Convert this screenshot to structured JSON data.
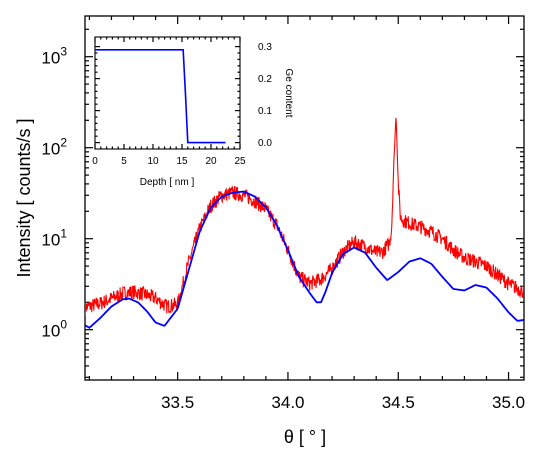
{
  "chart_data": {
    "type": "line",
    "xlabel": "θ [ ° ]",
    "ylabel": "Intensity [ counts/s ]",
    "xlim": [
      33.08,
      35.07
    ],
    "ylim": [
      0.28,
      2800
    ],
    "yscale": "log",
    "grid": false,
    "x_ticks": [
      "33.5",
      "34.0",
      "34.5",
      "35.0"
    ],
    "y_ticks": [
      {
        "base": "10",
        "exp": "0",
        "value": 1
      },
      {
        "base": "10",
        "exp": "1",
        "value": 10
      },
      {
        "base": "10",
        "exp": "2",
        "value": 100
      },
      {
        "base": "10",
        "exp": "3",
        "value": 1000
      }
    ],
    "series": [
      {
        "color": "#ff0000",
        "style": "noisy",
        "x": [
          33.08,
          33.15,
          33.2,
          33.25,
          33.3,
          33.35,
          33.4,
          33.45,
          33.5,
          33.55,
          33.6,
          33.65,
          33.7,
          33.75,
          33.8,
          33.85,
          33.9,
          33.95,
          34.0,
          34.05,
          34.1,
          34.15,
          34.2,
          34.25,
          34.3,
          34.35,
          34.4,
          34.43,
          34.46,
          34.47,
          34.48,
          34.49,
          34.5,
          34.51,
          34.53,
          34.56,
          34.6,
          34.65,
          34.7,
          34.75,
          34.8,
          34.85,
          34.9,
          34.95,
          35.0,
          35.07
        ],
        "y": [
          1.75,
          1.95,
          2.2,
          2.5,
          2.6,
          2.45,
          2.2,
          1.8,
          1.9,
          5.5,
          13,
          23,
          30,
          32,
          30,
          26,
          21,
          14,
          7.5,
          3.8,
          3.2,
          3.6,
          4.7,
          7.2,
          9.2,
          8.2,
          7.0,
          7.2,
          9.0,
          13,
          70,
          230,
          40,
          17,
          15.5,
          14.5,
          13.5,
          12,
          10,
          7.5,
          6.2,
          5.6,
          5.0,
          4.0,
          3.2,
          2.6
        ]
      },
      {
        "color": "#0000ff",
        "style": "smooth",
        "x": [
          33.08,
          33.1,
          33.15,
          33.2,
          33.25,
          33.28,
          33.32,
          33.36,
          33.4,
          33.44,
          33.5,
          33.55,
          33.6,
          33.65,
          33.7,
          33.75,
          33.8,
          33.85,
          33.9,
          33.95,
          34.0,
          34.05,
          34.1,
          34.13,
          34.15,
          34.17,
          34.2,
          34.25,
          34.3,
          34.35,
          34.4,
          34.45,
          34.5,
          34.55,
          34.6,
          34.65,
          34.7,
          34.75,
          34.8,
          34.85,
          34.9,
          34.95,
          35.0,
          35.04,
          35.07
        ],
        "y": [
          1.12,
          1.05,
          1.35,
          1.8,
          2.15,
          2.2,
          2.0,
          1.6,
          1.2,
          1.1,
          1.7,
          4.5,
          12,
          22,
          29,
          32,
          33,
          29,
          22,
          14,
          7.5,
          3.8,
          2.5,
          2.0,
          2.0,
          2.6,
          4.2,
          6.8,
          8.0,
          7.0,
          4.8,
          3.5,
          4.3,
          5.6,
          6.1,
          5.3,
          3.8,
          2.8,
          2.7,
          3.1,
          2.9,
          2.2,
          1.55,
          1.25,
          1.28
        ]
      }
    ]
  },
  "inset": {
    "xlabel": "Depth [ nm ]",
    "ylabel": "Ge content",
    "xlim": [
      0,
      25
    ],
    "ylim": [
      -0.02,
      0.33
    ],
    "x_ticks": [
      "0",
      "5",
      "10",
      "15",
      "20",
      "25"
    ],
    "y_ticks": [
      "0.0",
      "0.1",
      "0.2",
      "0.3"
    ],
    "series": [
      {
        "color": "#0000ff",
        "x": [
          0,
          15.2,
          15.6,
          16.0,
          22.5
        ],
        "y": [
          0.29,
          0.29,
          0.15,
          0.0,
          0.0
        ]
      }
    ]
  }
}
